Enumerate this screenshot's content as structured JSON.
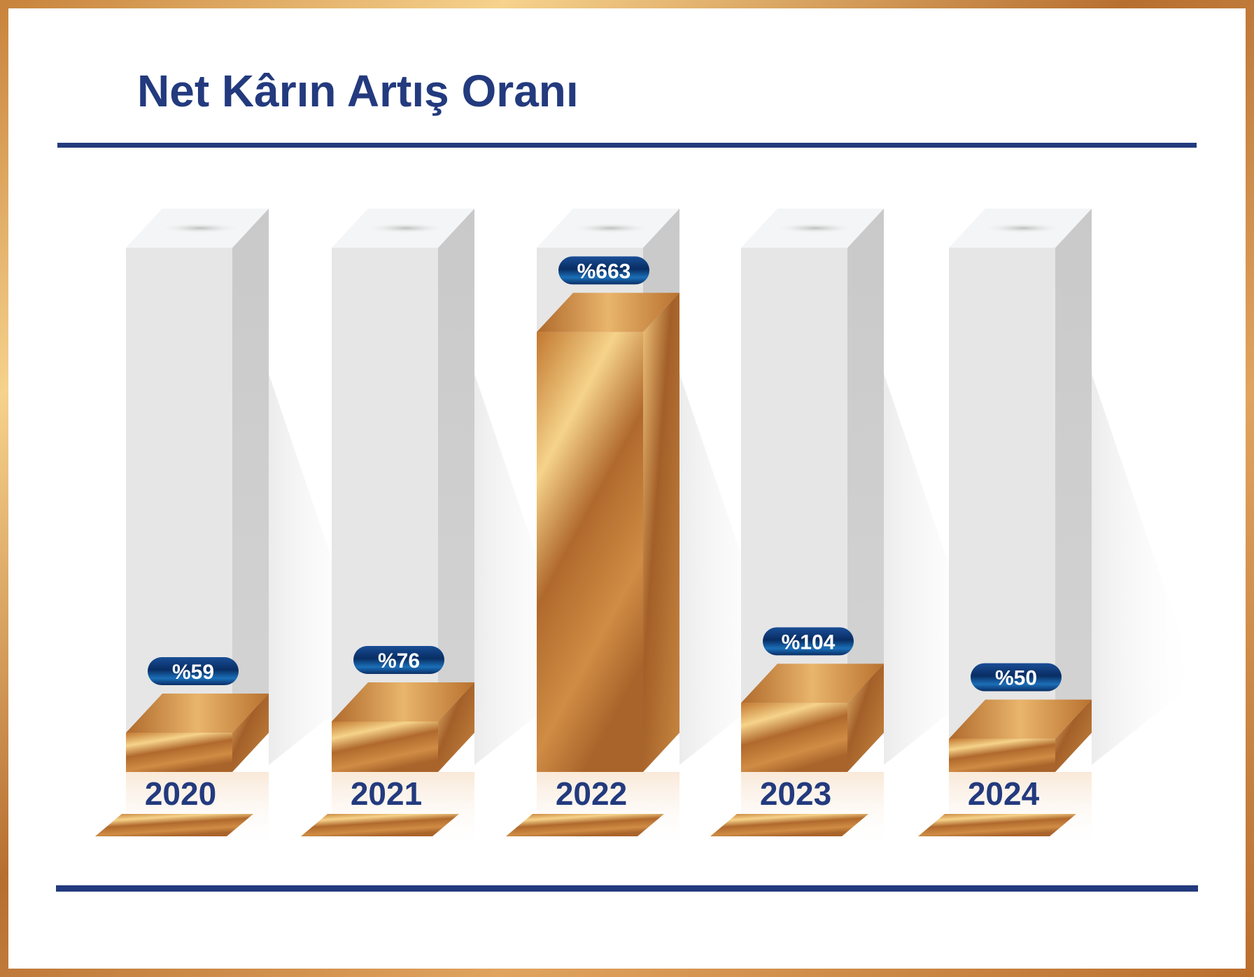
{
  "chart_data": {
    "type": "bar",
    "title": "Net Kârın Artış Oranı",
    "categories": [
      "2020",
      "2021",
      "2022",
      "2023",
      "2024"
    ],
    "values": [
      59,
      76,
      663,
      104,
      50
    ],
    "value_labels": [
      "%59",
      "%76",
      "%663",
      "%104",
      "%50"
    ],
    "ylim": [
      0,
      790
    ],
    "grid": false,
    "legend": "none"
  },
  "colors": {
    "frame": "#c9833c",
    "navy": "#233a7e",
    "bronze": "#c47a32",
    "bronze_light": "#f6d48c",
    "column_bg": "#e8e8e8",
    "pill": "#0c3a78"
  }
}
